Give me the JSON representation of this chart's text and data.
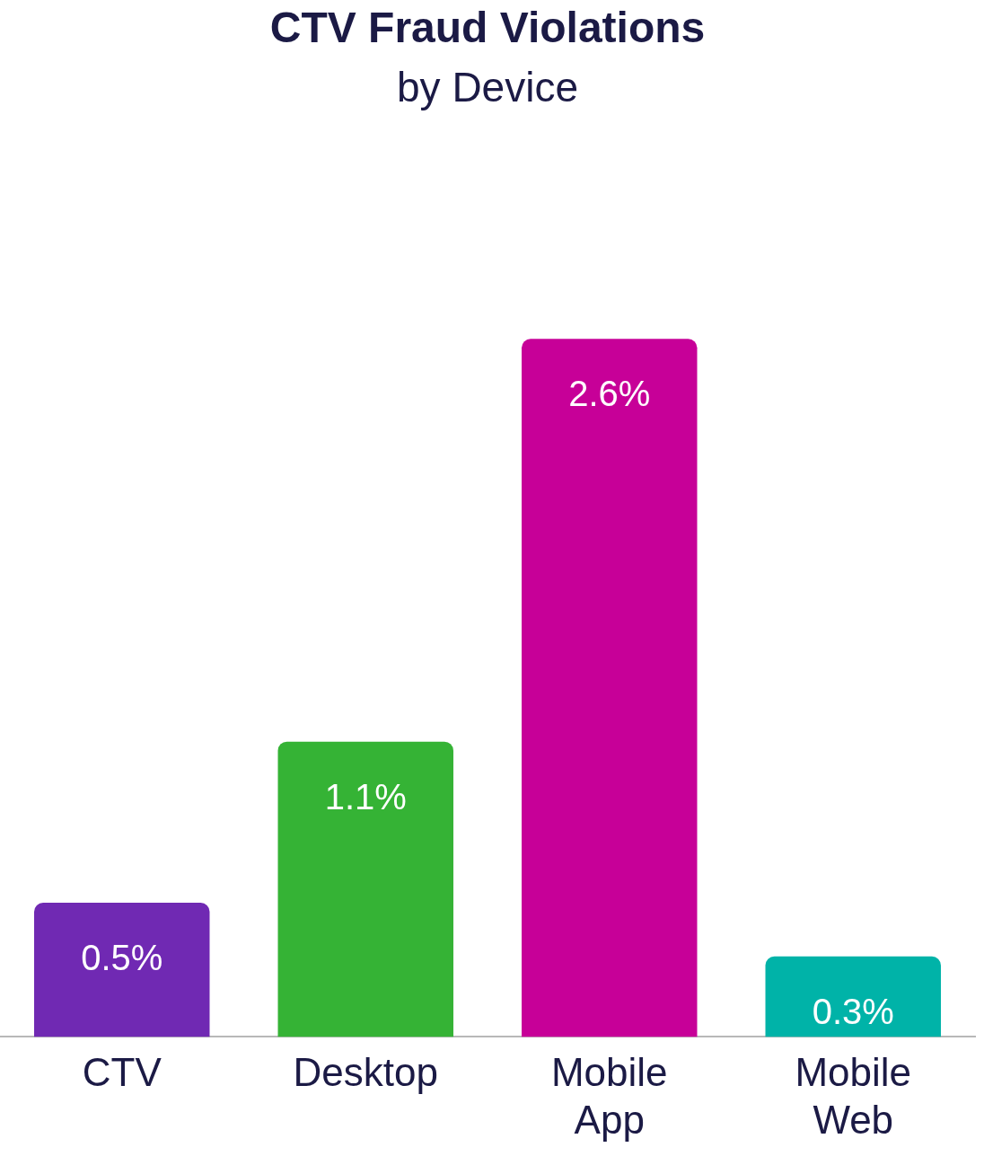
{
  "chart_data": {
    "type": "bar",
    "title": "CTV Fraud Violations",
    "subtitle": "by Device",
    "categories": [
      "CTV",
      "Desktop",
      "Mobile App",
      "Mobile Web"
    ],
    "values": [
      0.5,
      1.1,
      2.6,
      0.3
    ],
    "value_labels": [
      "0.5%",
      "1.1%",
      "2.6%",
      "0.3%"
    ],
    "colors": [
      "#7029b3",
      "#35b335",
      "#c70098",
      "#00b3a8"
    ],
    "grid": false,
    "legend": false,
    "tick_labels": "x"
  }
}
